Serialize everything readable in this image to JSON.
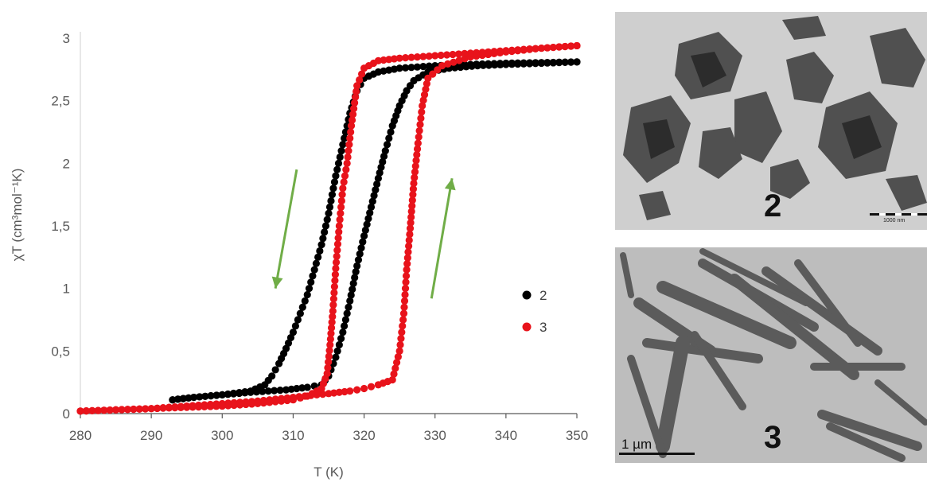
{
  "chart_data": {
    "type": "scatter",
    "xlabel": "T (K)",
    "ylabel": "χT (cm³mol⁻¹K)",
    "xlim": [
      280,
      350
    ],
    "ylim": [
      0,
      3
    ],
    "x_ticks": [
      "280",
      "290",
      "300",
      "310",
      "320",
      "330",
      "340",
      "350"
    ],
    "y_ticks": [
      "0",
      "0,5",
      "1",
      "1,5",
      "2",
      "2,5",
      "3"
    ],
    "grid": false,
    "legend_placement": "right",
    "series": [
      {
        "name": "2",
        "color": "#000000",
        "heating": [
          [
            293,
            0.11
          ],
          [
            296,
            0.13
          ],
          [
            300,
            0.15
          ],
          [
            304,
            0.17
          ],
          [
            309,
            0.19
          ],
          [
            312,
            0.21
          ],
          [
            314,
            0.23
          ],
          [
            315,
            0.3
          ],
          [
            316,
            0.45
          ],
          [
            317,
            0.65
          ],
          [
            318,
            0.9
          ],
          [
            319,
            1.18
          ],
          [
            320,
            1.42
          ],
          [
            321,
            1.65
          ],
          [
            322,
            1.88
          ],
          [
            323,
            2.1
          ],
          [
            324,
            2.3
          ],
          [
            325,
            2.46
          ],
          [
            326,
            2.58
          ],
          [
            327,
            2.66
          ],
          [
            329,
            2.73
          ],
          [
            332,
            2.76
          ],
          [
            336,
            2.78
          ],
          [
            340,
            2.79
          ],
          [
            345,
            2.8
          ],
          [
            350,
            2.81
          ]
        ],
        "cooling": [
          [
            350,
            2.81
          ],
          [
            340,
            2.8
          ],
          [
            330,
            2.78
          ],
          [
            325,
            2.76
          ],
          [
            322,
            2.73
          ],
          [
            320,
            2.68
          ],
          [
            319,
            2.58
          ],
          [
            318,
            2.4
          ],
          [
            317,
            2.15
          ],
          [
            316,
            1.9
          ],
          [
            315,
            1.6
          ],
          [
            314,
            1.35
          ],
          [
            313,
            1.15
          ],
          [
            312,
            0.95
          ],
          [
            311,
            0.8
          ],
          [
            310,
            0.65
          ],
          [
            309,
            0.52
          ],
          [
            308,
            0.4
          ],
          [
            307,
            0.3
          ],
          [
            306,
            0.23
          ],
          [
            304,
            0.18
          ],
          [
            300,
            0.15
          ],
          [
            296,
            0.13
          ],
          [
            293,
            0.11
          ]
        ]
      },
      {
        "name": "3",
        "color": "#e8131b",
        "heating": [
          [
            280,
            0.02
          ],
          [
            285,
            0.03
          ],
          [
            290,
            0.04
          ],
          [
            295,
            0.06
          ],
          [
            300,
            0.08
          ],
          [
            305,
            0.1
          ],
          [
            310,
            0.13
          ],
          [
            315,
            0.16
          ],
          [
            318,
            0.18
          ],
          [
            320,
            0.2
          ],
          [
            322,
            0.23
          ],
          [
            324,
            0.27
          ],
          [
            325,
            0.5
          ],
          [
            325.6,
            0.8
          ],
          [
            326,
            1.15
          ],
          [
            326.5,
            1.48
          ],
          [
            327,
            1.84
          ],
          [
            327.6,
            2.16
          ],
          [
            328.2,
            2.46
          ],
          [
            329,
            2.68
          ],
          [
            331,
            2.78
          ],
          [
            335,
            2.85
          ],
          [
            340,
            2.89
          ],
          [
            345,
            2.92
          ],
          [
            350,
            2.94
          ]
        ],
        "cooling": [
          [
            350,
            2.94
          ],
          [
            340,
            2.9
          ],
          [
            330,
            2.86
          ],
          [
            325,
            2.84
          ],
          [
            322,
            2.82
          ],
          [
            320,
            2.76
          ],
          [
            319,
            2.62
          ],
          [
            318.2,
            2.3
          ],
          [
            317.6,
            2.0
          ],
          [
            317,
            1.8
          ],
          [
            316.5,
            1.5
          ],
          [
            316,
            1.16
          ],
          [
            315.6,
            0.82
          ],
          [
            315.2,
            0.55
          ],
          [
            314.8,
            0.32
          ],
          [
            314,
            0.2
          ],
          [
            312,
            0.14
          ],
          [
            310,
            0.11
          ],
          [
            305,
            0.08
          ],
          [
            300,
            0.06
          ],
          [
            295,
            0.05
          ],
          [
            290,
            0.04
          ],
          [
            285,
            0.03
          ],
          [
            280,
            0.02
          ]
        ]
      }
    ],
    "annotations": [
      "cooling-arrow-down",
      "heating-arrow-up"
    ],
    "arrow_color": "#70ad47"
  },
  "panels": {
    "top": {
      "label": "2",
      "scale_text": "1000 nm"
    },
    "bottom": {
      "label": "3",
      "scale_text": "1 µm"
    }
  }
}
